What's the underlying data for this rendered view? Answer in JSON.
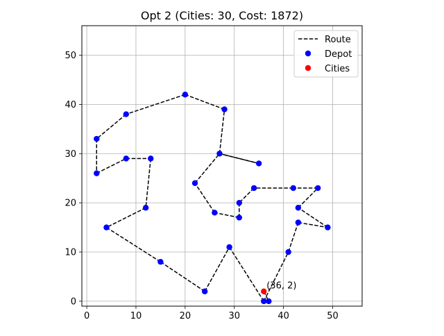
{
  "chart_data": {
    "type": "scatter",
    "title": "Opt 2 (Cities: 30, Cost: 1872)",
    "xlabel": "",
    "ylabel": "",
    "xlim": [
      -1,
      56
    ],
    "ylim": [
      -1,
      56
    ],
    "xticks": [
      0,
      10,
      20,
      30,
      40,
      50
    ],
    "yticks": [
      0,
      10,
      20,
      30,
      40,
      50
    ],
    "grid": true,
    "legend": {
      "position": "top-right",
      "entries": [
        {
          "label": "Route",
          "kind": "dashed-line",
          "color": "#000000"
        },
        {
          "label": "Depot",
          "kind": "marker",
          "color": "#0000ff"
        },
        {
          "label": "Cities",
          "kind": "marker",
          "color": "#ff0000"
        }
      ]
    },
    "route": [
      [
        36,
        2
      ],
      [
        37,
        0
      ],
      [
        36,
        0
      ],
      [
        41,
        10
      ],
      [
        43,
        16
      ],
      [
        49,
        15
      ],
      [
        43,
        19
      ],
      [
        47,
        23
      ],
      [
        42,
        23
      ],
      [
        34,
        23
      ],
      [
        31,
        20
      ],
      [
        31,
        17
      ],
      [
        26,
        18
      ],
      [
        22,
        24
      ],
      [
        27,
        30
      ],
      [
        35,
        28
      ],
      [
        27,
        30
      ],
      [
        28,
        39
      ],
      [
        20,
        42
      ],
      [
        8,
        38
      ],
      [
        2,
        33
      ],
      [
        2,
        26
      ],
      [
        8,
        29
      ],
      [
        13,
        29
      ],
      [
        12,
        19
      ],
      [
        4,
        15
      ],
      [
        15,
        8
      ],
      [
        24,
        2
      ],
      [
        29,
        11
      ],
      [
        36,
        0
      ]
    ],
    "blue_points": [
      [
        37,
        0
      ],
      [
        36,
        0
      ],
      [
        41,
        10
      ],
      [
        43,
        16
      ],
      [
        49,
        15
      ],
      [
        43,
        19
      ],
      [
        47,
        23
      ],
      [
        42,
        23
      ],
      [
        34,
        23
      ],
      [
        31,
        20
      ],
      [
        31,
        17
      ],
      [
        26,
        18
      ],
      [
        22,
        24
      ],
      [
        27,
        30
      ],
      [
        35,
        28
      ],
      [
        28,
        39
      ],
      [
        20,
        42
      ],
      [
        8,
        38
      ],
      [
        2,
        33
      ],
      [
        2,
        26
      ],
      [
        8,
        29
      ],
      [
        13,
        29
      ],
      [
        12,
        19
      ],
      [
        4,
        15
      ],
      [
        15,
        8
      ],
      [
        24,
        2
      ],
      [
        29,
        11
      ]
    ],
    "red_points": [
      [
        36,
        2
      ]
    ],
    "annotation": {
      "text": "(36, 2)",
      "x": 36,
      "y": 2
    }
  }
}
